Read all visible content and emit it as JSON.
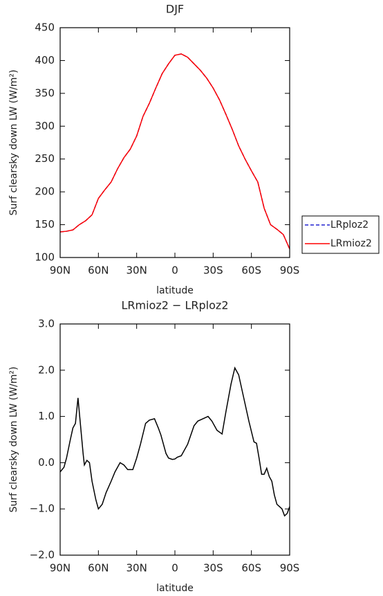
{
  "chart_data": [
    {
      "type": "line",
      "title": "DJF",
      "xlabel": "latitude",
      "ylabel": "Surf clearsky down LW (W/m²)",
      "x": [
        90,
        85,
        80,
        75,
        70,
        65,
        60,
        55,
        50,
        45,
        40,
        35,
        30,
        25,
        20,
        15,
        10,
        5,
        0,
        -5,
        -10,
        -15,
        -20,
        -25,
        -30,
        -35,
        -40,
        -45,
        -50,
        -55,
        -60,
        -65,
        -70,
        -75,
        -80,
        -85,
        -90
      ],
      "series": [
        {
          "name": "LRploz2",
          "color": "#2020d0",
          "dashed": true,
          "values": [
            139,
            140,
            142,
            150,
            156,
            165,
            190,
            203,
            215,
            235,
            252,
            265,
            285,
            315,
            335,
            358,
            380,
            395,
            408,
            410,
            405,
            395,
            385,
            373,
            358,
            340,
            318,
            295,
            270,
            250,
            232,
            215,
            175,
            150,
            143,
            135,
            113
          ]
        },
        {
          "name": "LRmioz2",
          "color": "#ff0000",
          "dashed": false,
          "values": [
            139,
            140,
            142,
            150,
            156,
            165,
            190,
            203,
            215,
            235,
            252,
            265,
            285,
            315,
            335,
            358,
            380,
            395,
            408,
            410,
            405,
            395,
            385,
            373,
            358,
            340,
            318,
            295,
            270,
            250,
            232,
            215,
            175,
            150,
            143,
            135,
            113
          ]
        }
      ],
      "xlim": [
        90,
        -90
      ],
      "xticks": [
        {
          "value": 90,
          "label": "90N"
        },
        {
          "value": 60,
          "label": "60N"
        },
        {
          "value": 30,
          "label": "30N"
        },
        0,
        {
          "value": -30,
          "label": "30S"
        },
        {
          "value": -60,
          "label": "60S"
        },
        {
          "value": -90,
          "label": "90S"
        }
      ],
      "ylim": [
        100,
        450
      ],
      "yticks": [
        100,
        150,
        200,
        250,
        300,
        350,
        400,
        450
      ],
      "legend": "right"
    },
    {
      "type": "line",
      "title": "LRmioz2 − LRploz2",
      "xlabel": "latitude",
      "ylabel": "Surf clearsky down LW (W/m²)",
      "x": [
        90,
        87,
        85,
        82,
        80,
        78,
        76,
        74,
        72,
        71,
        69,
        67,
        65,
        62,
        60,
        57,
        54,
        50,
        47,
        43,
        40,
        37,
        33,
        30,
        27,
        23,
        20,
        16,
        13,
        11,
        7,
        5,
        2,
        0,
        -2,
        -5,
        -10,
        -15,
        -18,
        -22,
        -26,
        -29,
        -33,
        -37,
        -40,
        -44,
        -47,
        -50,
        -54,
        -58,
        -62,
        -64,
        -66,
        -68,
        -70,
        -72,
        -74,
        -76,
        -78,
        -80,
        -82,
        -84,
        -86,
        -88,
        -90
      ],
      "series": [
        {
          "color": "#000000",
          "dashed": false,
          "values": [
            -0.2,
            -0.1,
            0.1,
            0.5,
            0.75,
            0.85,
            1.4,
            0.8,
            0.2,
            -0.05,
            0.05,
            0.0,
            -0.4,
            -0.8,
            -1.0,
            -0.9,
            -0.65,
            -0.4,
            -0.2,
            0.0,
            -0.05,
            -0.15,
            -0.15,
            0.1,
            0.4,
            0.85,
            0.92,
            0.95,
            0.75,
            0.6,
            0.2,
            0.1,
            0.07,
            0.08,
            0.12,
            0.15,
            0.4,
            0.8,
            0.9,
            0.95,
            1.0,
            0.9,
            0.7,
            0.62,
            1.1,
            1.7,
            2.05,
            1.9,
            1.4,
            0.9,
            0.45,
            0.42,
            0.1,
            -0.25,
            -0.25,
            -0.12,
            -0.3,
            -0.4,
            -0.7,
            -0.9,
            -0.95,
            -1.0,
            -1.15,
            -1.1,
            -0.95
          ]
        }
      ],
      "xlim": [
        90,
        -90
      ],
      "xticks": [
        {
          "value": 90,
          "label": "90N"
        },
        {
          "value": 60,
          "label": "60N"
        },
        {
          "value": 30,
          "label": "30N"
        },
        0,
        {
          "value": -30,
          "label": "30S"
        },
        {
          "value": -60,
          "label": "60S"
        },
        {
          "value": -90,
          "label": "90S"
        }
      ],
      "ylim": [
        -2,
        3
      ],
      "yticks": [
        {
          "value": -2,
          "label": "−2.0"
        },
        {
          "value": -1,
          "label": "−1.0"
        },
        {
          "value": 0,
          "label": "0.0"
        },
        {
          "value": 1,
          "label": "1.0"
        },
        {
          "value": 2,
          "label": "2.0"
        },
        {
          "value": 3,
          "label": "3.0"
        }
      ]
    }
  ]
}
